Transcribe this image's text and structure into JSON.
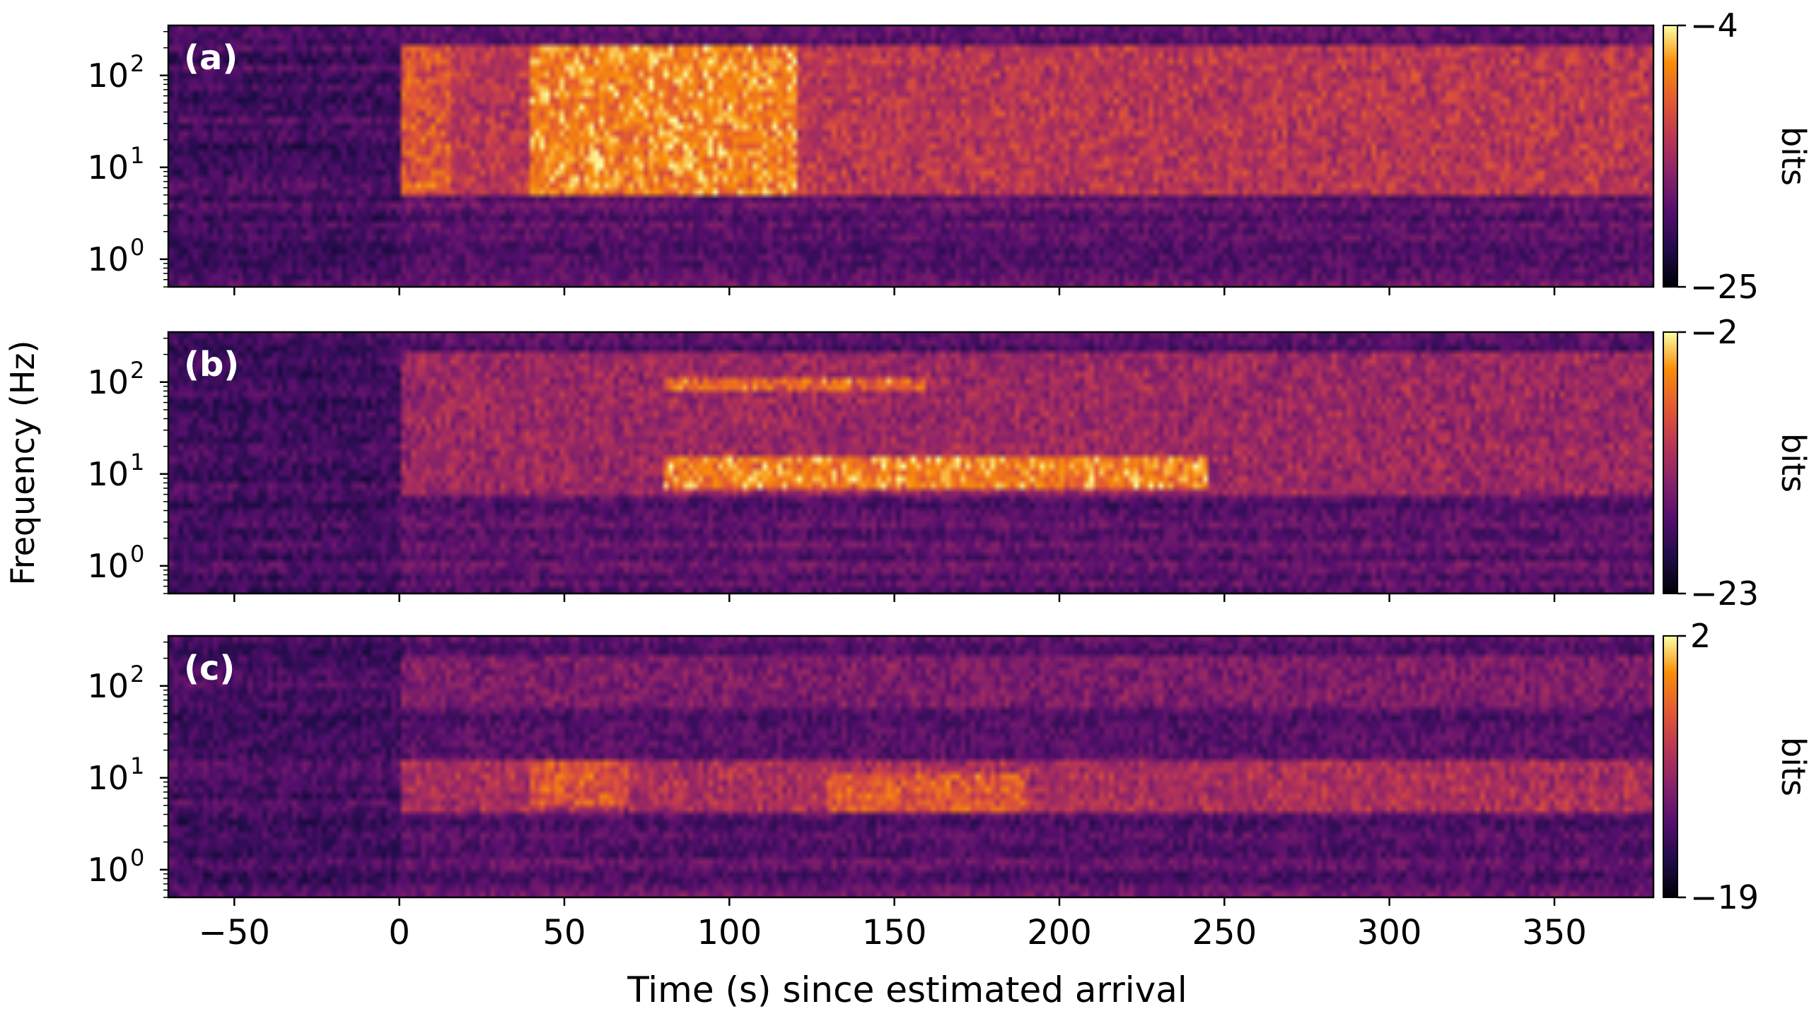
{
  "chart_data": {
    "type": "heatmap",
    "colormap": "inferno",
    "xlabel": "Time (s) since estimated arrival",
    "ylabel": "Frequency (Hz)",
    "xlim": [
      -70,
      380
    ],
    "x_ticks": [
      -50,
      0,
      50,
      100,
      150,
      200,
      250,
      300,
      350
    ],
    "x_tick_labels": [
      "−50",
      "0",
      "50",
      "100",
      "150",
      "200",
      "250",
      "300",
      "350"
    ],
    "y_scale": "log",
    "ylim": [
      0.5,
      350
    ],
    "y_ticks": [
      1,
      10,
      100
    ],
    "y_tick_base": "10",
    "y_tick_exponents": [
      "0",
      "1",
      "2"
    ],
    "panels": [
      {
        "label": "(a)",
        "colorbar": {
          "label": "bits",
          "min": -25,
          "max": -4,
          "min_label": "−25",
          "max_label": "−4"
        },
        "signal_onset_s": 0,
        "features": [
          {
            "t_start": 0,
            "t_end": 380,
            "f_low": 5,
            "f_high": 200,
            "relative_level": 0.65
          },
          {
            "t_start": 40,
            "t_end": 120,
            "f_low": 5,
            "f_high": 200,
            "relative_level": 0.95
          },
          {
            "t_start": 0,
            "t_end": 15,
            "f_low": 5,
            "f_high": 200,
            "relative_level": 0.8
          }
        ]
      },
      {
        "label": "(b)",
        "colorbar": {
          "label": "bits",
          "min": -23,
          "max": -2,
          "min_label": "−23",
          "max_label": "−2"
        },
        "signal_onset_s": 0,
        "features": [
          {
            "t_start": 0,
            "t_end": 380,
            "f_low": 6,
            "f_high": 200,
            "relative_level": 0.55
          },
          {
            "t_start": 80,
            "t_end": 245,
            "f_low": 7,
            "f_high": 15,
            "relative_level": 0.95
          },
          {
            "t_start": 80,
            "t_end": 160,
            "f_low": 80,
            "f_high": 120,
            "relative_level": 0.85
          }
        ]
      },
      {
        "label": "(c)",
        "colorbar": {
          "label": "bits",
          "min": -19,
          "max": 2,
          "min_label": "−19",
          "max_label": "2"
        },
        "signal_onset_s": 0,
        "features": [
          {
            "t_start": 0,
            "t_end": 380,
            "f_low": 4,
            "f_high": 15,
            "relative_level": 0.6
          },
          {
            "t_start": 0,
            "t_end": 380,
            "f_low": 60,
            "f_high": 200,
            "relative_level": 0.45
          },
          {
            "t_start": 130,
            "t_end": 190,
            "f_low": 4,
            "f_high": 12,
            "relative_level": 0.8
          },
          {
            "t_start": 40,
            "t_end": 70,
            "f_low": 5,
            "f_high": 15,
            "relative_level": 0.8
          }
        ]
      }
    ]
  }
}
